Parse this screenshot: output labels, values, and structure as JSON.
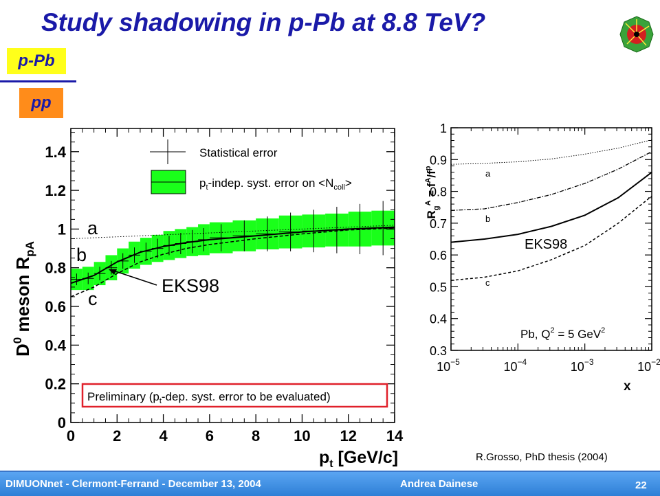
{
  "slide": {
    "title": "Study shadowing in p-Pb at 8.8 TeV?",
    "tag_top": "p-Pb",
    "tag_bottom": "pp",
    "citation": "R.Grosso, PhD thesis (2004)",
    "footer": {
      "left": "DIMUONnet - Clermont-Ferrand - December 13, 2004",
      "author": "Andrea Dainese",
      "page": "22"
    },
    "colors": {
      "title": "#1a1aa8",
      "tag_top_bg": "#ffff1a",
      "tag_bottom_bg": "#ff8c1a",
      "syst_band": "#1aff1a",
      "note_box": "#e0202a",
      "footer_bg": "#3b8ee6"
    }
  },
  "chart_data": [
    {
      "type": "line",
      "title": "",
      "xlabel_main": "p",
      "xlabel_sub": "t",
      "xlabel_rest": " [GeV/c]",
      "ylabel_main": "D",
      "ylabel_sup": "0",
      "ylabel_mid": " meson R",
      "ylabel_sub": "pA",
      "xlim": [
        0,
        14
      ],
      "ylim": [
        0,
        1.52
      ],
      "xticks": [
        0,
        2,
        4,
        6,
        8,
        10,
        12,
        14
      ],
      "xtick_labels": [
        "0",
        "2",
        "4",
        "6",
        "8",
        "10",
        "12",
        "14"
      ],
      "yticks": [
        0,
        0.2,
        0.4,
        0.6,
        0.8,
        1,
        1.2,
        1.4
      ],
      "ytick_labels": [
        "0",
        "0.2",
        "0.4",
        "0.6",
        "0.8",
        "1",
        "1.2",
        "1.4"
      ],
      "legend": [
        {
          "label": "Statistical error"
        },
        {
          "label_pre": "p",
          "label_sub": "t",
          "label_post": "-indep. syst. error on <N",
          "label_sub2": "coll",
          "label_end": ">"
        }
      ],
      "note": {
        "pre": "Preliminary (p",
        "sub": "t",
        "post": "-dep. syst. error to be evaluated)"
      },
      "curve_labels": [
        "a",
        "b",
        "c"
      ],
      "eks_label": "EKS98",
      "points": {
        "x": [
          0.25,
          0.75,
          1.25,
          1.75,
          2.25,
          2.75,
          3.25,
          3.75,
          4.25,
          4.75,
          5.25,
          5.75,
          6.5,
          7.5,
          8.5,
          9.5,
          10.5,
          11.5,
          12.5,
          13.5
        ],
        "y": [
          0.74,
          0.745,
          0.77,
          0.8,
          0.835,
          0.865,
          0.885,
          0.9,
          0.915,
          0.925,
          0.935,
          0.945,
          0.955,
          0.965,
          0.975,
          0.985,
          0.99,
          0.995,
          1.0,
          1.005
        ],
        "stat": [
          0.03,
          0.03,
          0.035,
          0.035,
          0.04,
          0.04,
          0.045,
          0.05,
          0.05,
          0.055,
          0.06,
          0.06,
          0.07,
          0.08,
          0.09,
          0.1,
          0.11,
          0.12,
          0.13,
          0.14
        ],
        "syst": [
          0.055,
          0.06,
          0.06,
          0.065,
          0.065,
          0.07,
          0.07,
          0.07,
          0.075,
          0.075,
          0.075,
          0.08,
          0.08,
          0.08,
          0.08,
          0.085,
          0.085,
          0.085,
          0.09,
          0.09
        ]
      },
      "curves": {
        "x": [
          0,
          1,
          2,
          3,
          4,
          5,
          6,
          8,
          10,
          12,
          14
        ],
        "a": [
          0.95,
          0.955,
          0.96,
          0.965,
          0.97,
          0.975,
          0.98,
          0.99,
          1.0,
          1.01,
          1.02
        ],
        "eks": [
          0.72,
          0.76,
          0.83,
          0.88,
          0.91,
          0.93,
          0.945,
          0.965,
          0.985,
          1.0,
          1.01
        ],
        "c": [
          0.65,
          0.7,
          0.77,
          0.83,
          0.87,
          0.9,
          0.92,
          0.95,
          0.975,
          0.995,
          1.005
        ]
      }
    },
    {
      "type": "line",
      "xscale": "log",
      "xlabel": "x",
      "ylabel_R": "R",
      "ylabel_sub": "g",
      "ylabel_sup": "A",
      "ylabel_rest": " = f",
      "ylabel_frac_sup": "A",
      "ylabel_frac": "/f",
      "ylabel_frac_sup2": "p",
      "xlim_exp": [
        -5,
        -2
      ],
      "ylim": [
        0.3,
        1.0
      ],
      "xtick_exps": [
        -5,
        -4,
        -3,
        -2
      ],
      "xtick_base": "10",
      "xtick_labels": [
        "−5",
        "−4",
        "−3",
        "−2"
      ],
      "yticks": [
        0.3,
        0.4,
        0.5,
        0.6,
        0.7,
        0.8,
        0.9,
        1
      ],
      "ytick_labels": [
        "0.3",
        "0.4",
        "0.5",
        "0.6",
        "0.7",
        "0.8",
        "0.9",
        "1"
      ],
      "curve_labels": [
        "a",
        "b",
        "c"
      ],
      "eks_label": "EKS98",
      "annotation": {
        "pre": "Pb, Q",
        "sup": "2",
        "post": " = 5 GeV",
        "sup2": "2"
      },
      "curves": {
        "log_x": [
          -5,
          -4.5,
          -4,
          -3.5,
          -3,
          -2.5,
          -2
        ],
        "a": [
          0.885,
          0.888,
          0.893,
          0.902,
          0.917,
          0.936,
          0.962
        ],
        "b": [
          0.74,
          0.745,
          0.765,
          0.79,
          0.825,
          0.87,
          0.925
        ],
        "eks": [
          0.64,
          0.65,
          0.665,
          0.69,
          0.725,
          0.78,
          0.86
        ],
        "c": [
          0.52,
          0.53,
          0.55,
          0.585,
          0.63,
          0.7,
          0.785
        ]
      }
    }
  ]
}
